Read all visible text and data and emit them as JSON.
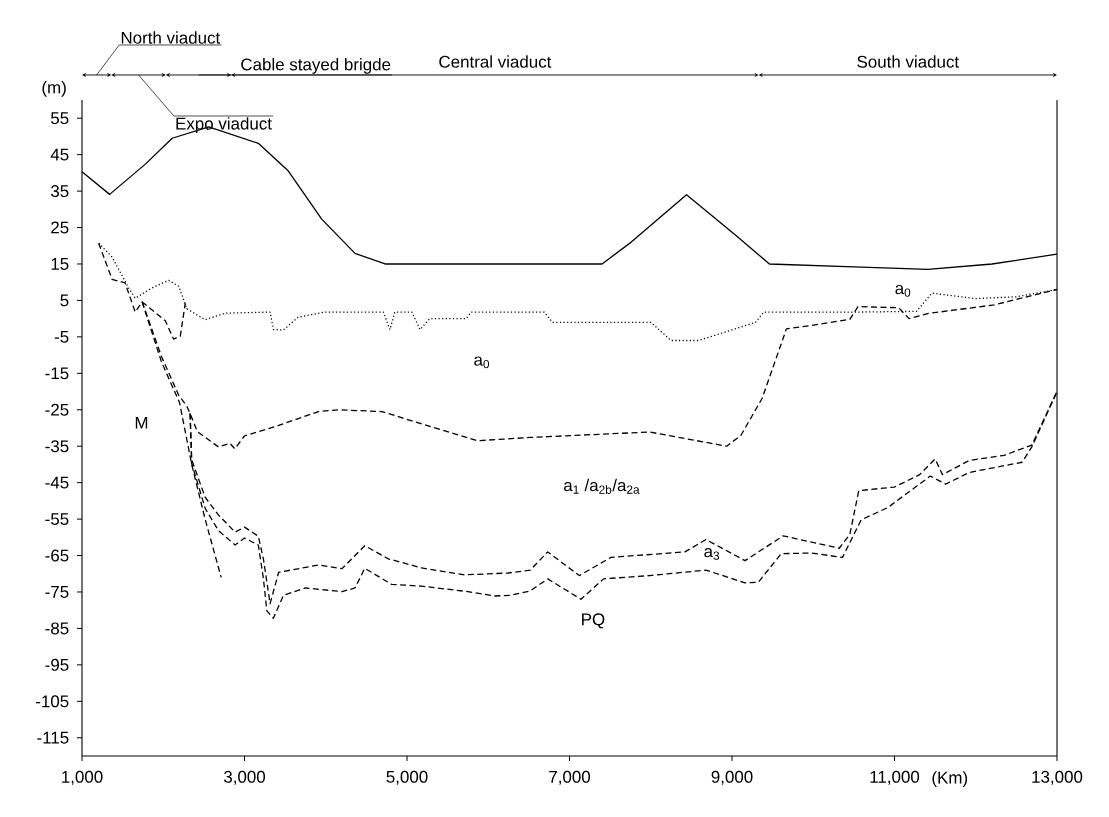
{
  "chart_data": {
    "type": "line",
    "xlabel": "(Km)",
    "ylabel": "(m)",
    "xlim": [
      1000,
      13000
    ],
    "ylim": [
      -120,
      60
    ],
    "xticks": [
      {
        "value": 1000,
        "label": "1,000"
      },
      {
        "value": 3000,
        "label": "3,000"
      },
      {
        "value": 5000,
        "label": "5,000"
      },
      {
        "value": 7000,
        "label": "7,000"
      },
      {
        "value": 9000,
        "label": "9,000"
      },
      {
        "value": 11000,
        "label": "11,000"
      },
      {
        "value": 13000,
        "label": "13,000"
      }
    ],
    "yticks": [
      55,
      45,
      35,
      25,
      15,
      5,
      -5,
      -15,
      -25,
      -35,
      -45,
      -55,
      -65,
      -75,
      -85,
      -95,
      -105,
      -115
    ],
    "series": [
      {
        "color": "#000000",
        "line_style": "solid",
        "x": [
          1000,
          1340,
          1780,
          2110,
          2560,
          3170,
          3540,
          3950,
          4360,
          4730,
          7400,
          7760,
          8440,
          9060,
          9460,
          10500,
          11410,
          12200,
          13000
        ],
        "values": [
          40.3,
          34.1,
          42.4,
          49.5,
          52.6,
          48.1,
          40.5,
          27.3,
          17.9,
          15,
          15,
          21,
          34,
          22.6,
          15,
          14.2,
          13.5,
          15,
          17.7
        ]
      },
      {
        "color": "#000000",
        "line_style": "dotted",
        "x": [
          1205,
          1370,
          1575,
          1655,
          1860,
          2066,
          2190,
          2290,
          2516,
          2760,
          3315,
          3356,
          3480,
          3660,
          3990,
          4710,
          4790,
          4850,
          5060,
          5160,
          5280,
          5730,
          5790,
          6690,
          6790,
          8000,
          8250,
          8590,
          9290,
          9390,
          10530,
          11270,
          11460,
          12000,
          12500,
          13000
        ],
        "values": [
          20.7,
          16.9,
          8.4,
          5.6,
          8.4,
          10.5,
          8.9,
          2.7,
          -0.3,
          1.5,
          1.8,
          -3,
          -3.1,
          0.4,
          1.8,
          1.8,
          -3,
          1.8,
          1.8,
          -3,
          0,
          0,
          1.8,
          1.8,
          -1,
          -1,
          -6,
          -6,
          -1,
          1.8,
          1.8,
          2,
          7,
          5.5,
          6,
          8
        ]
      },
      {
        "color": "#000000",
        "line_style": "dashed",
        "x": [
          1205,
          1370,
          1530,
          1655,
          1740,
          2025,
          2127,
          2210,
          2270,
          2290
        ],
        "values": [
          20.7,
          10.8,
          9.8,
          1.8,
          4.6,
          -0.6,
          -5.6,
          -4.8,
          4.1,
          2.7
        ]
      },
      {
        "color": "#000000",
        "line_style": "dashed",
        "x": [
          1740,
          1980,
          2190,
          2290,
          2330,
          2420,
          2680,
          2820,
          2880,
          3000,
          3420,
          3910,
          4160,
          4690,
          5200,
          5870,
          6516,
          7985,
          8935,
          9110,
          9370,
          9670,
          9970,
          10450,
          10550,
          11050,
          11180,
          11410,
          12230,
          13000
        ],
        "values": [
          4.6,
          -10.5,
          -21,
          -24,
          -26,
          -31,
          -35.2,
          -34.2,
          -35.7,
          -32.2,
          -29.3,
          -25.5,
          -25,
          -25.5,
          -29,
          -33.5,
          -32.6,
          -31.1,
          -35,
          -32,
          -21.9,
          -2.8,
          -1.9,
          -0.2,
          3.3,
          3,
          0,
          1.4,
          3.8,
          8
        ]
      },
      {
        "color": "#000000",
        "line_style": "dashed",
        "x": [
          1740,
          1980,
          2200,
          2350,
          2515,
          2713
        ],
        "values": [
          4.6,
          -12,
          -23,
          -40,
          -55,
          -71
        ]
      },
      {
        "color": "#000000",
        "line_style": "dashed",
        "x": [
          2330,
          2350,
          2515,
          2680,
          2885,
          3000,
          3170,
          3233,
          3315,
          3420,
          3910,
          4200,
          4480,
          4770,
          5180,
          5710,
          6240,
          6516,
          6732,
          7120,
          7510,
          8420,
          8680,
          9160,
          9630,
          10320,
          10450,
          10560,
          11000,
          11310,
          11500,
          11590,
          11920,
          12350,
          12690,
          13000
        ],
        "values": [
          -26,
          -38.7,
          -49,
          -53.9,
          -58.6,
          -57.2,
          -59.7,
          -66,
          -78.2,
          -69.6,
          -67.6,
          -68.6,
          -62.3,
          -65.9,
          -68.4,
          -70.3,
          -69.8,
          -69,
          -64,
          -70.5,
          -65.5,
          -64,
          -60.6,
          -66.4,
          -59.6,
          -63,
          -59.2,
          -47.2,
          -46.2,
          -42.8,
          -38.5,
          -42.8,
          -38.9,
          -37.5,
          -34.7,
          -20
        ]
      },
      {
        "color": "#000000",
        "line_style": "dashed",
        "x": [
          2330,
          2350,
          2515,
          2680,
          2885,
          3000,
          3170,
          3233,
          3275,
          3355,
          3480,
          3750,
          4200,
          4360,
          4480,
          4810,
          5180,
          5750,
          6080,
          6270,
          6516,
          6732,
          7140,
          7420,
          7985,
          8680,
          9160,
          9325,
          9605,
          9970,
          10360,
          10590,
          10920,
          11440,
          11630,
          11920,
          12570,
          12690,
          13000
        ],
        "values": [
          -26,
          -39.7,
          -52,
          -58.2,
          -62.1,
          -60.2,
          -62.1,
          -71.4,
          -80.2,
          -82.2,
          -75.9,
          -73.9,
          -74.9,
          -73.9,
          -68.5,
          -72.9,
          -73.4,
          -74.9,
          -76.1,
          -75.9,
          -74.7,
          -71.4,
          -77,
          -71.4,
          -70.5,
          -69,
          -72.5,
          -72.3,
          -64.5,
          -64.3,
          -65.5,
          -55.2,
          -51.8,
          -43.2,
          -45.4,
          -42.2,
          -39.4,
          -35.2,
          -20
        ]
      }
    ],
    "annotations": [
      "North viaduct",
      "Expo viaduct",
      "Cable stayed brigde",
      "Central viaduct",
      "South viaduct",
      "a$_{0}$",
      "a$_{0}$",
      "a$_{1}$ /a$_{2b}$/a$_{2a}$",
      "M",
      "a$_{3}$",
      "PQ"
    ]
  }
}
